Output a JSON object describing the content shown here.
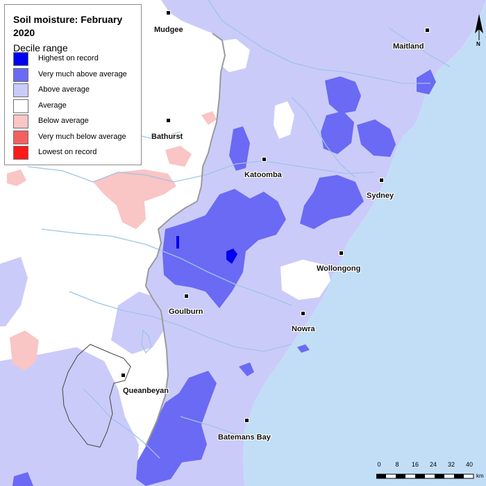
{
  "legend": {
    "title": "Soil moisture: February 2020",
    "subtitle": "Decile range",
    "items": [
      {
        "label": "Highest on record",
        "color": "#0000ee"
      },
      {
        "label": "Very much above average",
        "color": "#6a6af4"
      },
      {
        "label": "Above average",
        "color": "#cbcbfa"
      },
      {
        "label": "Average",
        "color": "#ffffff"
      },
      {
        "label": "Below average",
        "color": "#f9c5c5"
      },
      {
        "label": "Very much below average",
        "color": "#f36060"
      },
      {
        "label": "Lowest on record",
        "color": "#ff1a1a"
      }
    ]
  },
  "colors": {
    "ocean": "#c2def6",
    "land_average": "#ffffff",
    "above_average": "#cbcbfa",
    "very_much_above": "#6a6af4",
    "highest": "#0000ee",
    "below_average": "#f9c5c5",
    "river": "#9fc4e6",
    "border": "#444444"
  },
  "towns": [
    {
      "name": "Mudgee",
      "id": "mudgee"
    },
    {
      "name": "Maitland",
      "id": "maitland"
    },
    {
      "name": "Bathurst",
      "id": "bathurst"
    },
    {
      "name": "Katoomba",
      "id": "katoomba"
    },
    {
      "name": "Sydney",
      "id": "sydney"
    },
    {
      "name": "Wollongong",
      "id": "wollongong"
    },
    {
      "name": "Goulburn",
      "id": "goulburn"
    },
    {
      "name": "Nowra",
      "id": "nowra"
    },
    {
      "name": "Queanbeyan",
      "id": "queanbeyan"
    },
    {
      "name": "Batemans Bay",
      "id": "batemans-bay"
    }
  ],
  "scale_bar": {
    "ticks": [
      "0",
      "8",
      "16",
      "24",
      "32",
      "40"
    ],
    "unit": "km"
  },
  "north_arrow": {
    "label": "N"
  }
}
